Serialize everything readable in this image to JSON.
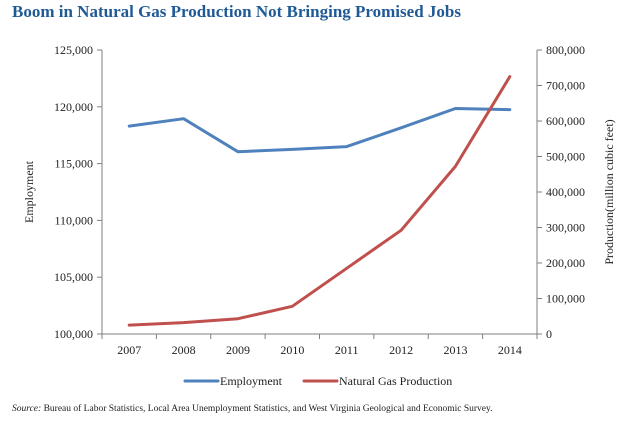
{
  "title": "Boom in Natural Gas Production Not Bringing Promised Jobs",
  "source_label": "Source:",
  "source_text": " Bureau of Labor Statistics, Local Area Unemployment Statistics, and West Virginia Geological and Economic Survey.",
  "chart_data": {
    "type": "line",
    "x": [
      "2007",
      "2008",
      "2009",
      "2010",
      "2011",
      "2012",
      "2013",
      "2014"
    ],
    "series": [
      {
        "name": "Employment",
        "axis": "left",
        "color": "#4f81bd",
        "values": [
          118300,
          118950,
          116050,
          116250,
          116500,
          118150,
          119850,
          119750
        ]
      },
      {
        "name": "Natural Gas Production",
        "axis": "right",
        "color": "#c0504d",
        "values": [
          25000,
          32000,
          43000,
          78000,
          185000,
          292000,
          472000,
          725000
        ]
      }
    ],
    "ylabel_left": "Employment",
    "ylabel_right": "Production(million cubic feet)",
    "ylim_left": [
      100000,
      125000
    ],
    "ylim_right": [
      0,
      800000
    ],
    "yticks_left": [
      "100,000",
      "105,000",
      "110,000",
      "115,000",
      "120,000",
      "125,000"
    ],
    "yticks_right": [
      "0",
      "100,000",
      "200,000",
      "300,000",
      "400,000",
      "500,000",
      "600,000",
      "700,000",
      "800,000"
    ],
    "legend_position": "bottom",
    "grid": false
  }
}
